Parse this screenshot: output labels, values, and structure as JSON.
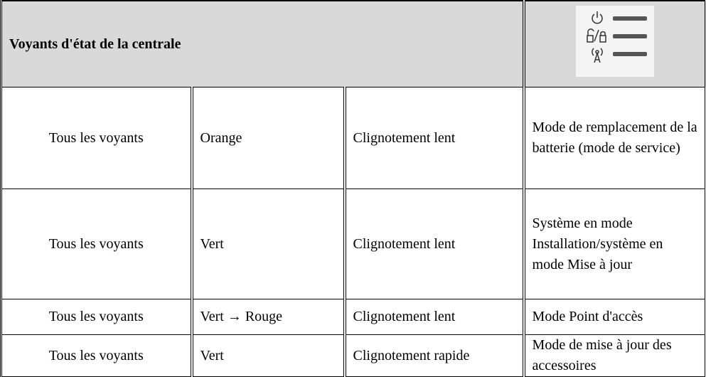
{
  "header": {
    "title": "Voyants d'état de la centrale"
  },
  "table": {
    "rows": [
      [
        "Tous les voyants",
        "Orange",
        "Clignotement lent",
        "Mode de remplacement de la batterie (mode de service)"
      ],
      [
        "Tous les voyants",
        "Vert",
        "Clignotement lent",
        "Système en mode Installation/système en mode Mise à jour"
      ],
      [
        "Tous les voyants",
        "Vert → Rouge",
        "Clignotement lent",
        "Mode Point d'accès"
      ],
      [
        "Tous les voyants",
        "Vert",
        "Clignotement rapide",
        "Mode de mise à jour des accessoires"
      ]
    ]
  }
}
